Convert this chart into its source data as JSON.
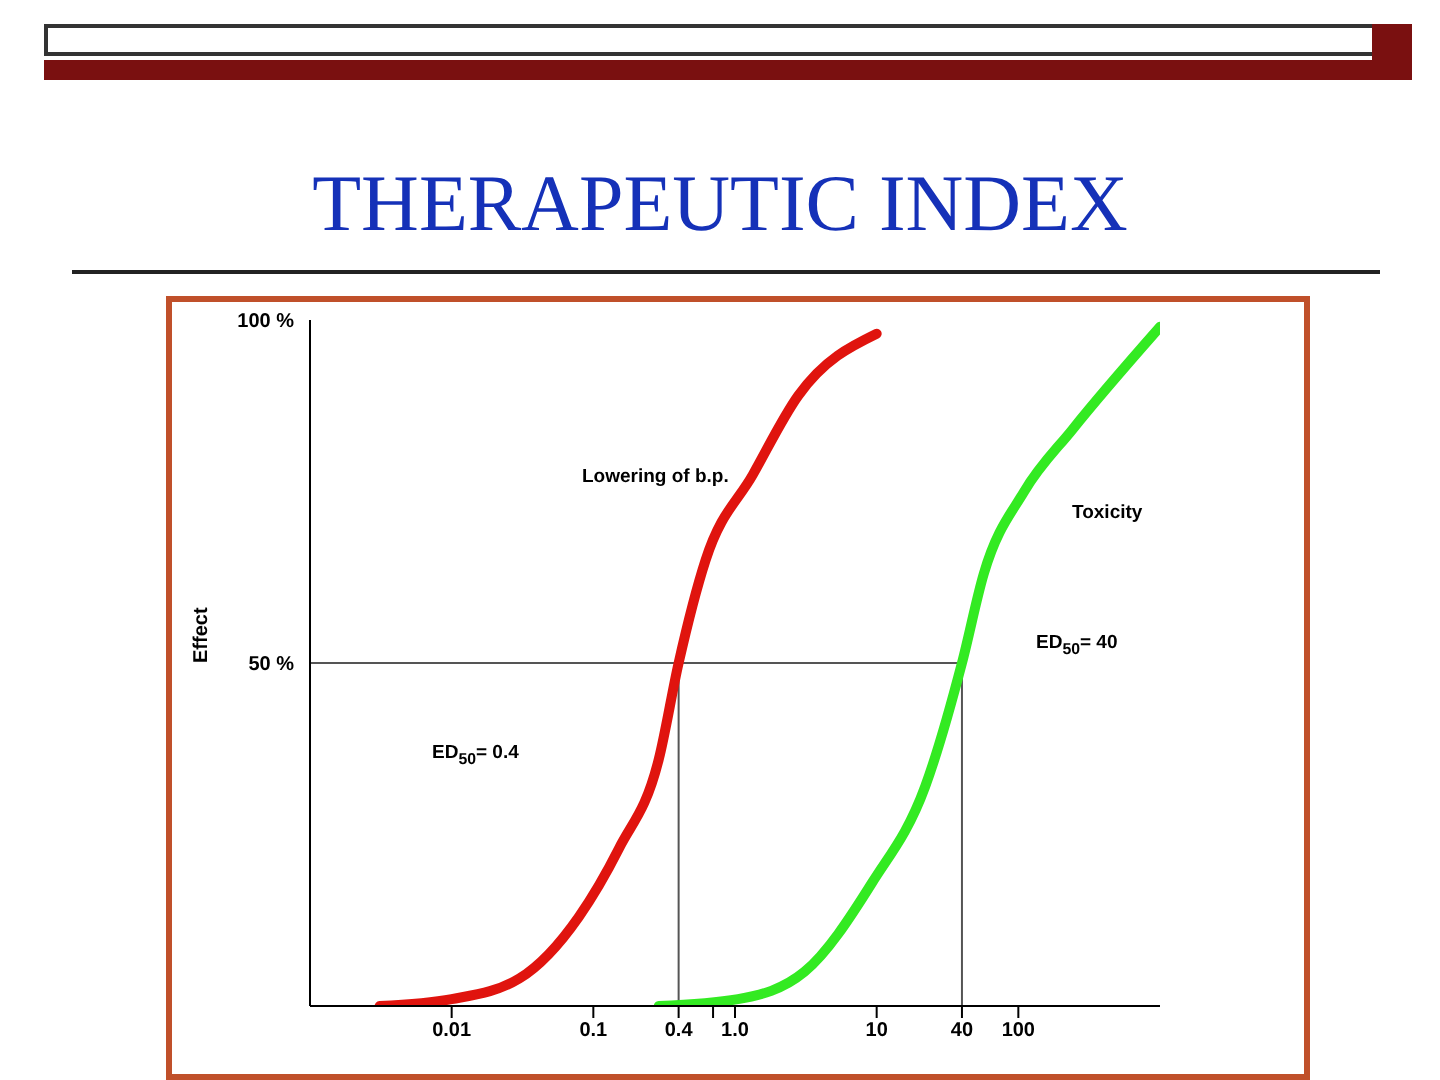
{
  "chart_data": {
    "type": "line",
    "title": "THERAPEUTIC INDEX",
    "ylabel": "Effect",
    "series": [
      {
        "name": "Lowering of b.p.",
        "color": "#e0140e",
        "x": [
          0.0031,
          0.01,
          0.03,
          0.079,
          0.152,
          0.29,
          0.4,
          0.62,
          1.34,
          2.8,
          10
        ],
        "values": [
          0,
          1,
          4,
          13,
          23,
          36,
          50,
          65,
          77.5,
          89,
          98
        ]
      },
      {
        "name": "Toxicity",
        "color": "#33ea22",
        "x": [
          0.29,
          1.05,
          3.1,
          9.3,
          22,
          40,
          57,
          110,
          240,
          1000
        ],
        "values": [
          0,
          1,
          5,
          18,
          32,
          50,
          63,
          75,
          84,
          99
        ]
      }
    ],
    "annotations": [
      "ED$_{50}$= 0.4",
      "ED$_{50}$= 40"
    ],
    "ref_lines": [
      {
        "axis": "x",
        "value": 0.4,
        "color": "#555555"
      },
      {
        "axis": "x",
        "value": 40,
        "color": "#555555"
      },
      {
        "axis": "y",
        "value": 50,
        "color": "#555555"
      }
    ],
    "log": "x",
    "xlim": [
      0.001,
      1000
    ],
    "xticks": [
      0.01,
      0.1,
      0.4,
      {
        "value": 0.7,
        "label": null
      },
      {
        "value": 1,
        "label": "1.0"
      },
      10,
      40,
      100
    ],
    "ylim": [
      0,
      100
    ],
    "yticks": [
      {
        "value": 50,
        "label": "50 %"
      },
      {
        "value": 100,
        "label": "100 %"
      }
    ],
    "grid": false,
    "legend": false,
    "marker": "none",
    "line_style": "solid"
  }
}
